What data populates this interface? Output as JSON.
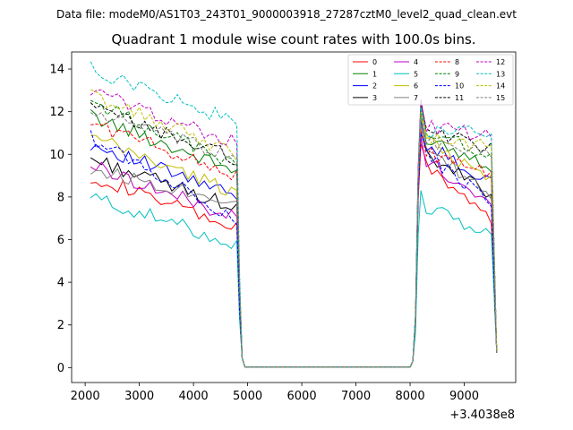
{
  "header": {
    "suptitle": "Data file: modeM0/AS1T03_243T01_9000003918_27287cztM0_level2_quad_clean.evt"
  },
  "chart_data": {
    "type": "line",
    "title": "Quadrant 1 module wise count rates with 100.0s bins.",
    "xlabel": "",
    "ylabel": "",
    "x_offset_label": "+3.4038e8",
    "xlim": [
      1750,
      9950
    ],
    "ylim": [
      -0.7,
      14.8
    ],
    "xticks": [
      2000,
      3000,
      4000,
      5000,
      6000,
      7000,
      8000,
      9000
    ],
    "xtick_labels": [
      "2000",
      "3000",
      "4000",
      "5000",
      "6000",
      "7000",
      "8000",
      "9000"
    ],
    "yticks": [
      0,
      2,
      4,
      6,
      8,
      10,
      12,
      14
    ],
    "ytick_labels": [
      "0",
      "2",
      "4",
      "6",
      "8",
      "10",
      "12",
      "14"
    ],
    "grid": false,
    "legend_position": "top-right",
    "legend_columns": 4,
    "x": [
      2100,
      2200,
      2300,
      2400,
      2500,
      2600,
      2700,
      2800,
      2900,
      3000,
      3100,
      3200,
      3300,
      3400,
      3500,
      3600,
      3700,
      3800,
      3900,
      4000,
      4100,
      4200,
      4300,
      4400,
      4500,
      4600,
      4700,
      4800,
      4850,
      4900,
      4950,
      5000,
      8000,
      8050,
      8100,
      8150,
      8200,
      8300,
      8400,
      8500,
      8600,
      8700,
      8800,
      8900,
      9000,
      9100,
      9200,
      9300,
      9400,
      9500,
      9600
    ],
    "series": [
      {
        "name": "0",
        "color": "#ff0000",
        "dash": "solid",
        "start": 9.0,
        "end1": 6.5,
        "peak": 10.5,
        "end2": 7.0
      },
      {
        "name": "1",
        "color": "#008000",
        "dash": "solid",
        "start": 11.8,
        "end1": 9.2,
        "peak": 12.0,
        "end2": 9.5
      },
      {
        "name": "2",
        "color": "#0000ff",
        "dash": "solid",
        "start": 10.5,
        "end1": 8.0,
        "peak": 11.6,
        "end2": 8.6
      },
      {
        "name": "3",
        "color": "#000000",
        "dash": "solid",
        "start": 9.8,
        "end1": 7.5,
        "peak": 11.0,
        "end2": 8.2
      },
      {
        "name": "4",
        "color": "#bf00bf",
        "dash": "solid",
        "start": 9.5,
        "end1": 7.0,
        "peak": 10.8,
        "end2": 7.6
      },
      {
        "name": "5",
        "color": "#00bfbf",
        "dash": "solid",
        "start": 8.0,
        "end1": 5.8,
        "peak": 8.3,
        "end2": 6.2
      },
      {
        "name": "6",
        "color": "#bfbf00",
        "dash": "solid",
        "start": 10.8,
        "end1": 8.2,
        "peak": 11.8,
        "end2": 8.8
      },
      {
        "name": "7",
        "color": "#808080",
        "dash": "solid",
        "start": 9.3,
        "end1": 7.8,
        "peak": 11.4,
        "end2": 8.0
      },
      {
        "name": "8",
        "color": "#ff0000",
        "dash": "dashed",
        "start": 11.5,
        "end1": 9.0,
        "peak": 11.2,
        "end2": 9.0
      },
      {
        "name": "9",
        "color": "#008000",
        "dash": "dashed",
        "start": 12.5,
        "end1": 9.5,
        "peak": 12.3,
        "end2": 10.0
      },
      {
        "name": "10",
        "color": "#0000ff",
        "dash": "dashed",
        "start": 10.8,
        "end1": 7.0,
        "peak": 11.0,
        "end2": 7.8
      },
      {
        "name": "11",
        "color": "#000000",
        "dash": "dashed",
        "start": 12.2,
        "end1": 9.8,
        "peak": 12.4,
        "end2": 10.2
      },
      {
        "name": "12",
        "color": "#bf00bf",
        "dash": "dashed",
        "start": 13.0,
        "end1": 10.5,
        "peak": 12.6,
        "end2": 10.8
      },
      {
        "name": "13",
        "color": "#00bfbf",
        "dash": "dashed",
        "start": 14.0,
        "end1": 11.5,
        "peak": 12.2,
        "end2": 11.0
      },
      {
        "name": "14",
        "color": "#bfbf00",
        "dash": "dashed",
        "start": 12.8,
        "end1": 10.0,
        "peak": 12.0,
        "end2": 10.3
      },
      {
        "name": "15",
        "color": "#808080",
        "dash": "dashed",
        "start": 12.0,
        "end1": 9.8,
        "peak": 11.8,
        "end2": 9.9
      }
    ]
  }
}
